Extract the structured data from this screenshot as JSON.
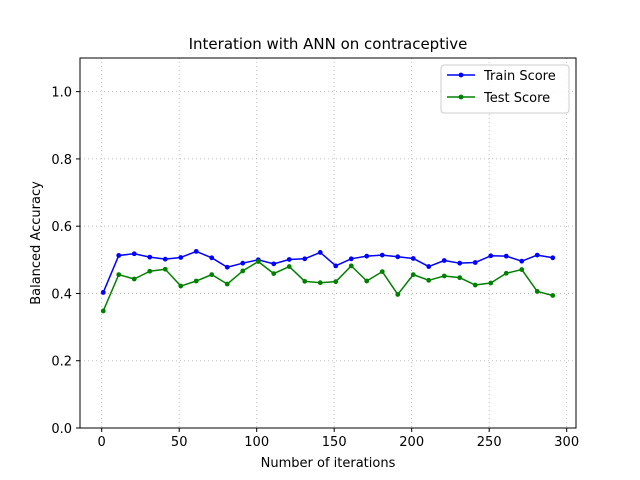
{
  "chart_data": {
    "type": "line",
    "title": "Interation with ANN on contraceptive",
    "xlabel": "Number of iterations",
    "ylabel": "Balanced Accuracy",
    "xlim": [
      -14,
      306
    ],
    "ylim": [
      0.0,
      1.1
    ],
    "xticks": [
      "0",
      "50",
      "100",
      "150",
      "200",
      "250",
      "300"
    ],
    "yticks": [
      "0.0",
      "0.2",
      "0.4",
      "0.6",
      "0.8",
      "1.0"
    ],
    "grid": true,
    "legend_position": "top-right",
    "x": [
      1,
      11,
      21,
      31,
      41,
      51,
      61,
      71,
      81,
      91,
      101,
      111,
      121,
      131,
      141,
      151,
      161,
      171,
      181,
      191,
      201,
      211,
      221,
      231,
      241,
      251,
      261,
      271,
      281,
      291
    ],
    "series": [
      {
        "name": "Train Score",
        "color": "#0000ff",
        "values": [
          0.403,
          0.513,
          0.518,
          0.508,
          0.502,
          0.507,
          0.525,
          0.506,
          0.478,
          0.49,
          0.5,
          0.488,
          0.501,
          0.503,
          0.522,
          0.482,
          0.503,
          0.511,
          0.514,
          0.509,
          0.504,
          0.48,
          0.498,
          0.49,
          0.492,
          0.512,
          0.511,
          0.496,
          0.514,
          0.506
        ]
      },
      {
        "name": "Test Score",
        "color": "#008000",
        "values": [
          0.348,
          0.456,
          0.443,
          0.466,
          0.472,
          0.422,
          0.437,
          0.456,
          0.428,
          0.467,
          0.495,
          0.459,
          0.48,
          0.436,
          0.432,
          0.435,
          0.482,
          0.437,
          0.465,
          0.397,
          0.456,
          0.439,
          0.452,
          0.447,
          0.425,
          0.431,
          0.46,
          0.471,
          0.406,
          0.394
        ]
      }
    ]
  }
}
